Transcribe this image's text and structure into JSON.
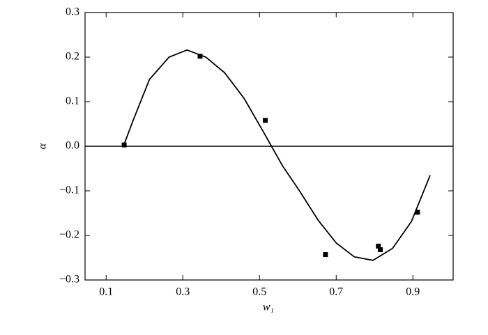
{
  "chart_data": {
    "type": "scatter",
    "x_label": "w₁",
    "y_label": "α",
    "xlim": [
      0.045,
      1.005
    ],
    "ylim": [
      -0.3,
      0.3
    ],
    "xticks": [
      0.1,
      0.3,
      0.5,
      0.7,
      0.9
    ],
    "yticks": [
      {
        "value": -0.3,
        "label": "−0.3"
      },
      {
        "value": -0.2,
        "label": "−0.2"
      },
      {
        "value": -0.1,
        "label": "−0.1"
      },
      {
        "value": 0,
        "label": "0.0"
      },
      0.1,
      0.2,
      0.3
    ],
    "hline": 0,
    "series": [
      {
        "type": "scatter",
        "color": "#000000",
        "x": [
          0.147,
          0.345,
          0.515,
          0.672,
          0.81,
          0.815,
          0.912
        ],
        "values": [
          0.003,
          0.202,
          0.058,
          -0.243,
          -0.224,
          -0.232,
          -0.148
        ]
      },
      {
        "type": "line",
        "color": "#000000",
        "x": [
          0.145,
          0.169,
          0.213,
          0.264,
          0.311,
          0.36,
          0.409,
          0.46,
          0.511,
          0.56,
          0.605,
          0.653,
          0.7,
          0.747,
          0.796,
          0.847,
          0.896,
          0.945
        ],
        "values": [
          0,
          0.055,
          0.15,
          0.2,
          0.216,
          0.2,
          0.165,
          0.107,
          0.031,
          -0.044,
          -0.101,
          -0.166,
          -0.217,
          -0.248,
          -0.256,
          -0.229,
          -0.169,
          -0.065
        ]
      }
    ]
  }
}
